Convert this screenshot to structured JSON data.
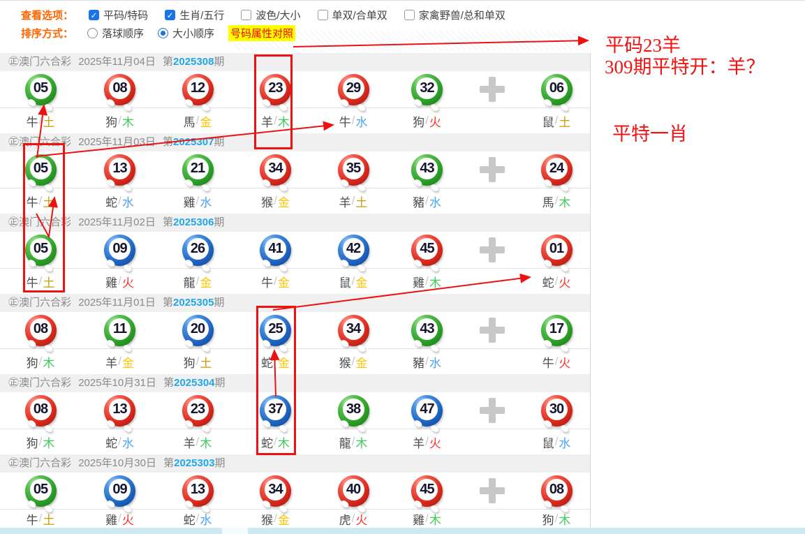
{
  "controls": {
    "view_label": "查看选项：",
    "view_options": [
      {
        "label": "平码/特码",
        "checked": true
      },
      {
        "label": "生肖/五行",
        "checked": true
      },
      {
        "label": "波色/大小",
        "checked": false
      },
      {
        "label": "单双/合单双",
        "checked": false
      },
      {
        "label": "家禽野兽/总和单双",
        "checked": false
      }
    ],
    "sort_label": "排序方式：",
    "sort_options": [
      {
        "label": "落球顺序",
        "selected": false
      },
      {
        "label": "大小顺序",
        "selected": true
      }
    ],
    "compare_link": "号码属性对照",
    "check_icon": "✓"
  },
  "misc": {
    "separator": "/",
    "title": "㊣澳门六合彩",
    "period_prefix": "第",
    "period_suffix": "期"
  },
  "draws": [
    {
      "date": "2025年11月04日",
      "period": "2025308",
      "balls": [
        {
          "num": "05",
          "color": "green",
          "zodiac": "牛",
          "element": "土"
        },
        {
          "num": "08",
          "color": "red",
          "zodiac": "狗",
          "element": "木"
        },
        {
          "num": "12",
          "color": "red",
          "zodiac": "馬",
          "element": "金"
        },
        {
          "num": "23",
          "color": "red",
          "zodiac": "羊",
          "element": "木"
        },
        {
          "num": "29",
          "color": "red",
          "zodiac": "牛",
          "element": "水"
        },
        {
          "num": "32",
          "color": "green",
          "zodiac": "狗",
          "element": "火"
        },
        {
          "num": "06",
          "color": "green",
          "zodiac": "鼠",
          "element": "土"
        }
      ]
    },
    {
      "date": "2025年11月03日",
      "period": "2025307",
      "balls": [
        {
          "num": "05",
          "color": "green",
          "zodiac": "牛",
          "element": "土"
        },
        {
          "num": "13",
          "color": "red",
          "zodiac": "蛇",
          "element": "水"
        },
        {
          "num": "21",
          "color": "green",
          "zodiac": "雞",
          "element": "水"
        },
        {
          "num": "34",
          "color": "red",
          "zodiac": "猴",
          "element": "金"
        },
        {
          "num": "35",
          "color": "red",
          "zodiac": "羊",
          "element": "土"
        },
        {
          "num": "43",
          "color": "green",
          "zodiac": "豬",
          "element": "水"
        },
        {
          "num": "24",
          "color": "red",
          "zodiac": "馬",
          "element": "木"
        }
      ]
    },
    {
      "date": "2025年11月02日",
      "period": "2025306",
      "balls": [
        {
          "num": "05",
          "color": "green",
          "zodiac": "牛",
          "element": "土"
        },
        {
          "num": "09",
          "color": "blue",
          "zodiac": "雞",
          "element": "火"
        },
        {
          "num": "26",
          "color": "blue",
          "zodiac": "龍",
          "element": "金"
        },
        {
          "num": "41",
          "color": "blue",
          "zodiac": "牛",
          "element": "金"
        },
        {
          "num": "42",
          "color": "blue",
          "zodiac": "鼠",
          "element": "金"
        },
        {
          "num": "45",
          "color": "red",
          "zodiac": "雞",
          "element": "木"
        },
        {
          "num": "01",
          "color": "red",
          "zodiac": "蛇",
          "element": "火"
        }
      ]
    },
    {
      "date": "2025年11月01日",
      "period": "2025305",
      "balls": [
        {
          "num": "08",
          "color": "red",
          "zodiac": "狗",
          "element": "木"
        },
        {
          "num": "11",
          "color": "green",
          "zodiac": "羊",
          "element": "金"
        },
        {
          "num": "20",
          "color": "blue",
          "zodiac": "狗",
          "element": "土"
        },
        {
          "num": "25",
          "color": "blue",
          "zodiac": "蛇",
          "element": "金"
        },
        {
          "num": "34",
          "color": "red",
          "zodiac": "猴",
          "element": "金"
        },
        {
          "num": "43",
          "color": "green",
          "zodiac": "豬",
          "element": "水"
        },
        {
          "num": "17",
          "color": "green",
          "zodiac": "牛",
          "element": "火"
        }
      ]
    },
    {
      "date": "2025年10月31日",
      "period": "2025304",
      "balls": [
        {
          "num": "08",
          "color": "red",
          "zodiac": "狗",
          "element": "木"
        },
        {
          "num": "13",
          "color": "red",
          "zodiac": "蛇",
          "element": "水"
        },
        {
          "num": "23",
          "color": "red",
          "zodiac": "羊",
          "element": "木"
        },
        {
          "num": "37",
          "color": "blue",
          "zodiac": "蛇",
          "element": "木"
        },
        {
          "num": "38",
          "color": "green",
          "zodiac": "龍",
          "element": "木"
        },
        {
          "num": "47",
          "color": "blue",
          "zodiac": "羊",
          "element": "火"
        },
        {
          "num": "30",
          "color": "red",
          "zodiac": "鼠",
          "element": "水"
        }
      ]
    },
    {
      "date": "2025年10月30日",
      "period": "2025303",
      "balls": [
        {
          "num": "05",
          "color": "green",
          "zodiac": "牛",
          "element": "土"
        },
        {
          "num": "09",
          "color": "blue",
          "zodiac": "雞",
          "element": "火"
        },
        {
          "num": "13",
          "color": "red",
          "zodiac": "蛇",
          "element": "水"
        },
        {
          "num": "34",
          "color": "red",
          "zodiac": "猴",
          "element": "金"
        },
        {
          "num": "40",
          "color": "red",
          "zodiac": "虎",
          "element": "火"
        },
        {
          "num": "45",
          "color": "red",
          "zodiac": "雞",
          "element": "木"
        },
        {
          "num": "08",
          "color": "red",
          "zodiac": "狗",
          "element": "木"
        }
      ]
    }
  ],
  "annotations": {
    "line1": "平码23羊",
    "line2": "309期平特开：羊？",
    "line3": "平特一肖"
  },
  "colors": {
    "elements": {
      "金": "#fdc500",
      "木": "#3ecb5a",
      "水": "#4da3f8",
      "火": "#ff3232",
      "土": "#c99b00"
    },
    "accent_red": "#ee1111",
    "period_blue": "#21a6ea"
  }
}
